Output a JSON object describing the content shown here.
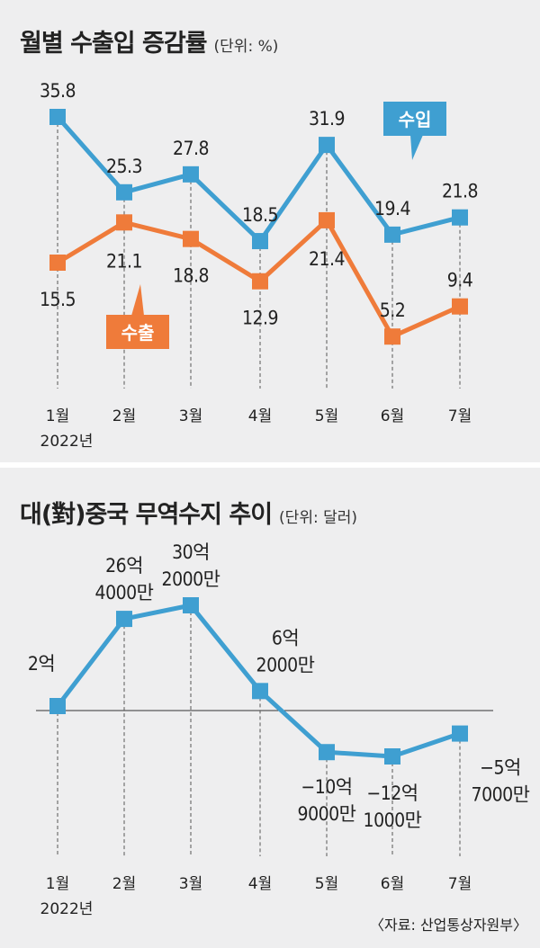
{
  "chart_data": [
    {
      "type": "line",
      "title": "월별 수출입 증감률",
      "unit": "(단위: %)",
      "categories": [
        "1월",
        "2월",
        "3월",
        "4월",
        "5월",
        "6월",
        "7월"
      ],
      "year_label": "2022년",
      "series": [
        {
          "name": "수입",
          "color": "#3f9fd1",
          "values": [
            35.8,
            25.3,
            27.8,
            18.5,
            31.9,
            19.4,
            21.8
          ],
          "labels": [
            "35.8",
            "25.3",
            "27.8",
            "18.5",
            "31.9",
            "19.4",
            "21.8"
          ]
        },
        {
          "name": "수출",
          "color": "#ef7b3a",
          "values": [
            15.5,
            21.1,
            18.8,
            12.9,
            21.4,
            5.2,
            9.4
          ],
          "labels": [
            "15.5",
            "21.1",
            "18.8",
            "12.9",
            "21.4",
            "5.2",
            "9.4"
          ]
        }
      ]
    },
    {
      "type": "line",
      "title": "대(對)중국 무역수지 추이",
      "unit": "(단위: 달러)",
      "categories": [
        "1월",
        "2월",
        "3월",
        "4월",
        "5월",
        "6월",
        "7월"
      ],
      "year_label": "2022년",
      "series": [
        {
          "color": "#3f9fd1",
          "values": [
            200000000,
            2640000000,
            3020000000,
            620000000,
            -1090000000,
            -1210000000,
            -570000000
          ],
          "labels": [
            [
              "2억"
            ],
            [
              "26억",
              "4000만"
            ],
            [
              "30억",
              "2000만"
            ],
            [
              "6억",
              "2000만"
            ],
            [
              "−10억",
              "9000만"
            ],
            [
              "−12억",
              "1000만"
            ],
            [
              "−5억",
              "7000만"
            ]
          ]
        }
      ],
      "source": "〈자료: 산업통상자원부〉"
    }
  ]
}
